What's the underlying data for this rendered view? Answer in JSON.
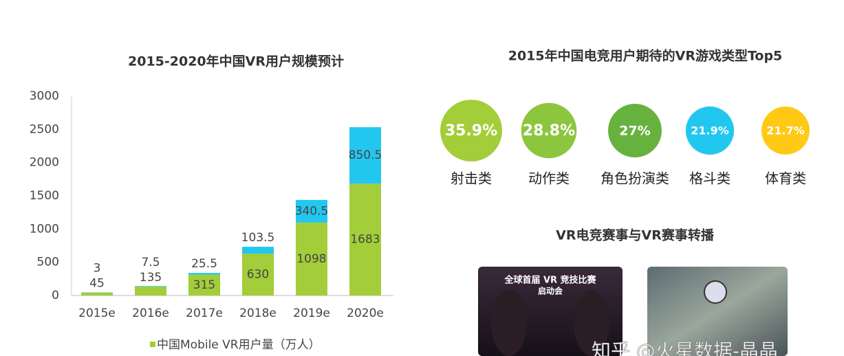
{
  "chart_data": [
    {
      "type": "bar",
      "title": "2015-2020年中国VR用户规模预计",
      "categories": [
        "2015e",
        "2016e",
        "2017e",
        "2018e",
        "2019e",
        "2020e"
      ],
      "series": [
        {
          "name": "中国Mobile VR用户量（万人）",
          "color": "#a3cd39",
          "values": [
            45,
            135,
            315,
            630,
            1098,
            1683
          ]
        },
        {
          "color": "#22c7ef",
          "values": [
            3,
            7.5,
            25.5,
            103.5,
            340.5,
            850.5
          ]
        }
      ],
      "stacked": true,
      "ylim": [
        0,
        3000
      ],
      "yticks": [
        0,
        500,
        1000,
        1500,
        2000,
        2500,
        3000
      ],
      "grid": false,
      "legend": "bottom"
    },
    {
      "type": "circles",
      "title": "2015年中国电竞用户期待的VR游戏类型Top5",
      "categories": [
        "射击类",
        "动作类",
        "角色扮演类",
        "格斗类",
        "体育类"
      ],
      "values": [
        35.9,
        28.8,
        27,
        21.9,
        21.7
      ],
      "value_labels": [
        "35.9%",
        "28.8%",
        "27%",
        "21.9%",
        "21.7%"
      ],
      "colors": [
        "#a3cd39",
        "#8cc63f",
        "#67b23f",
        "#22c7ef",
        "#ffc915"
      ]
    }
  ],
  "section": {
    "title": "VR电竞赛事与VR赛事转播",
    "image_text": [
      "全球首届 VR 竞技比赛",
      "启动会"
    ],
    "watermark": "知乎 @火星数据-晶晶"
  }
}
